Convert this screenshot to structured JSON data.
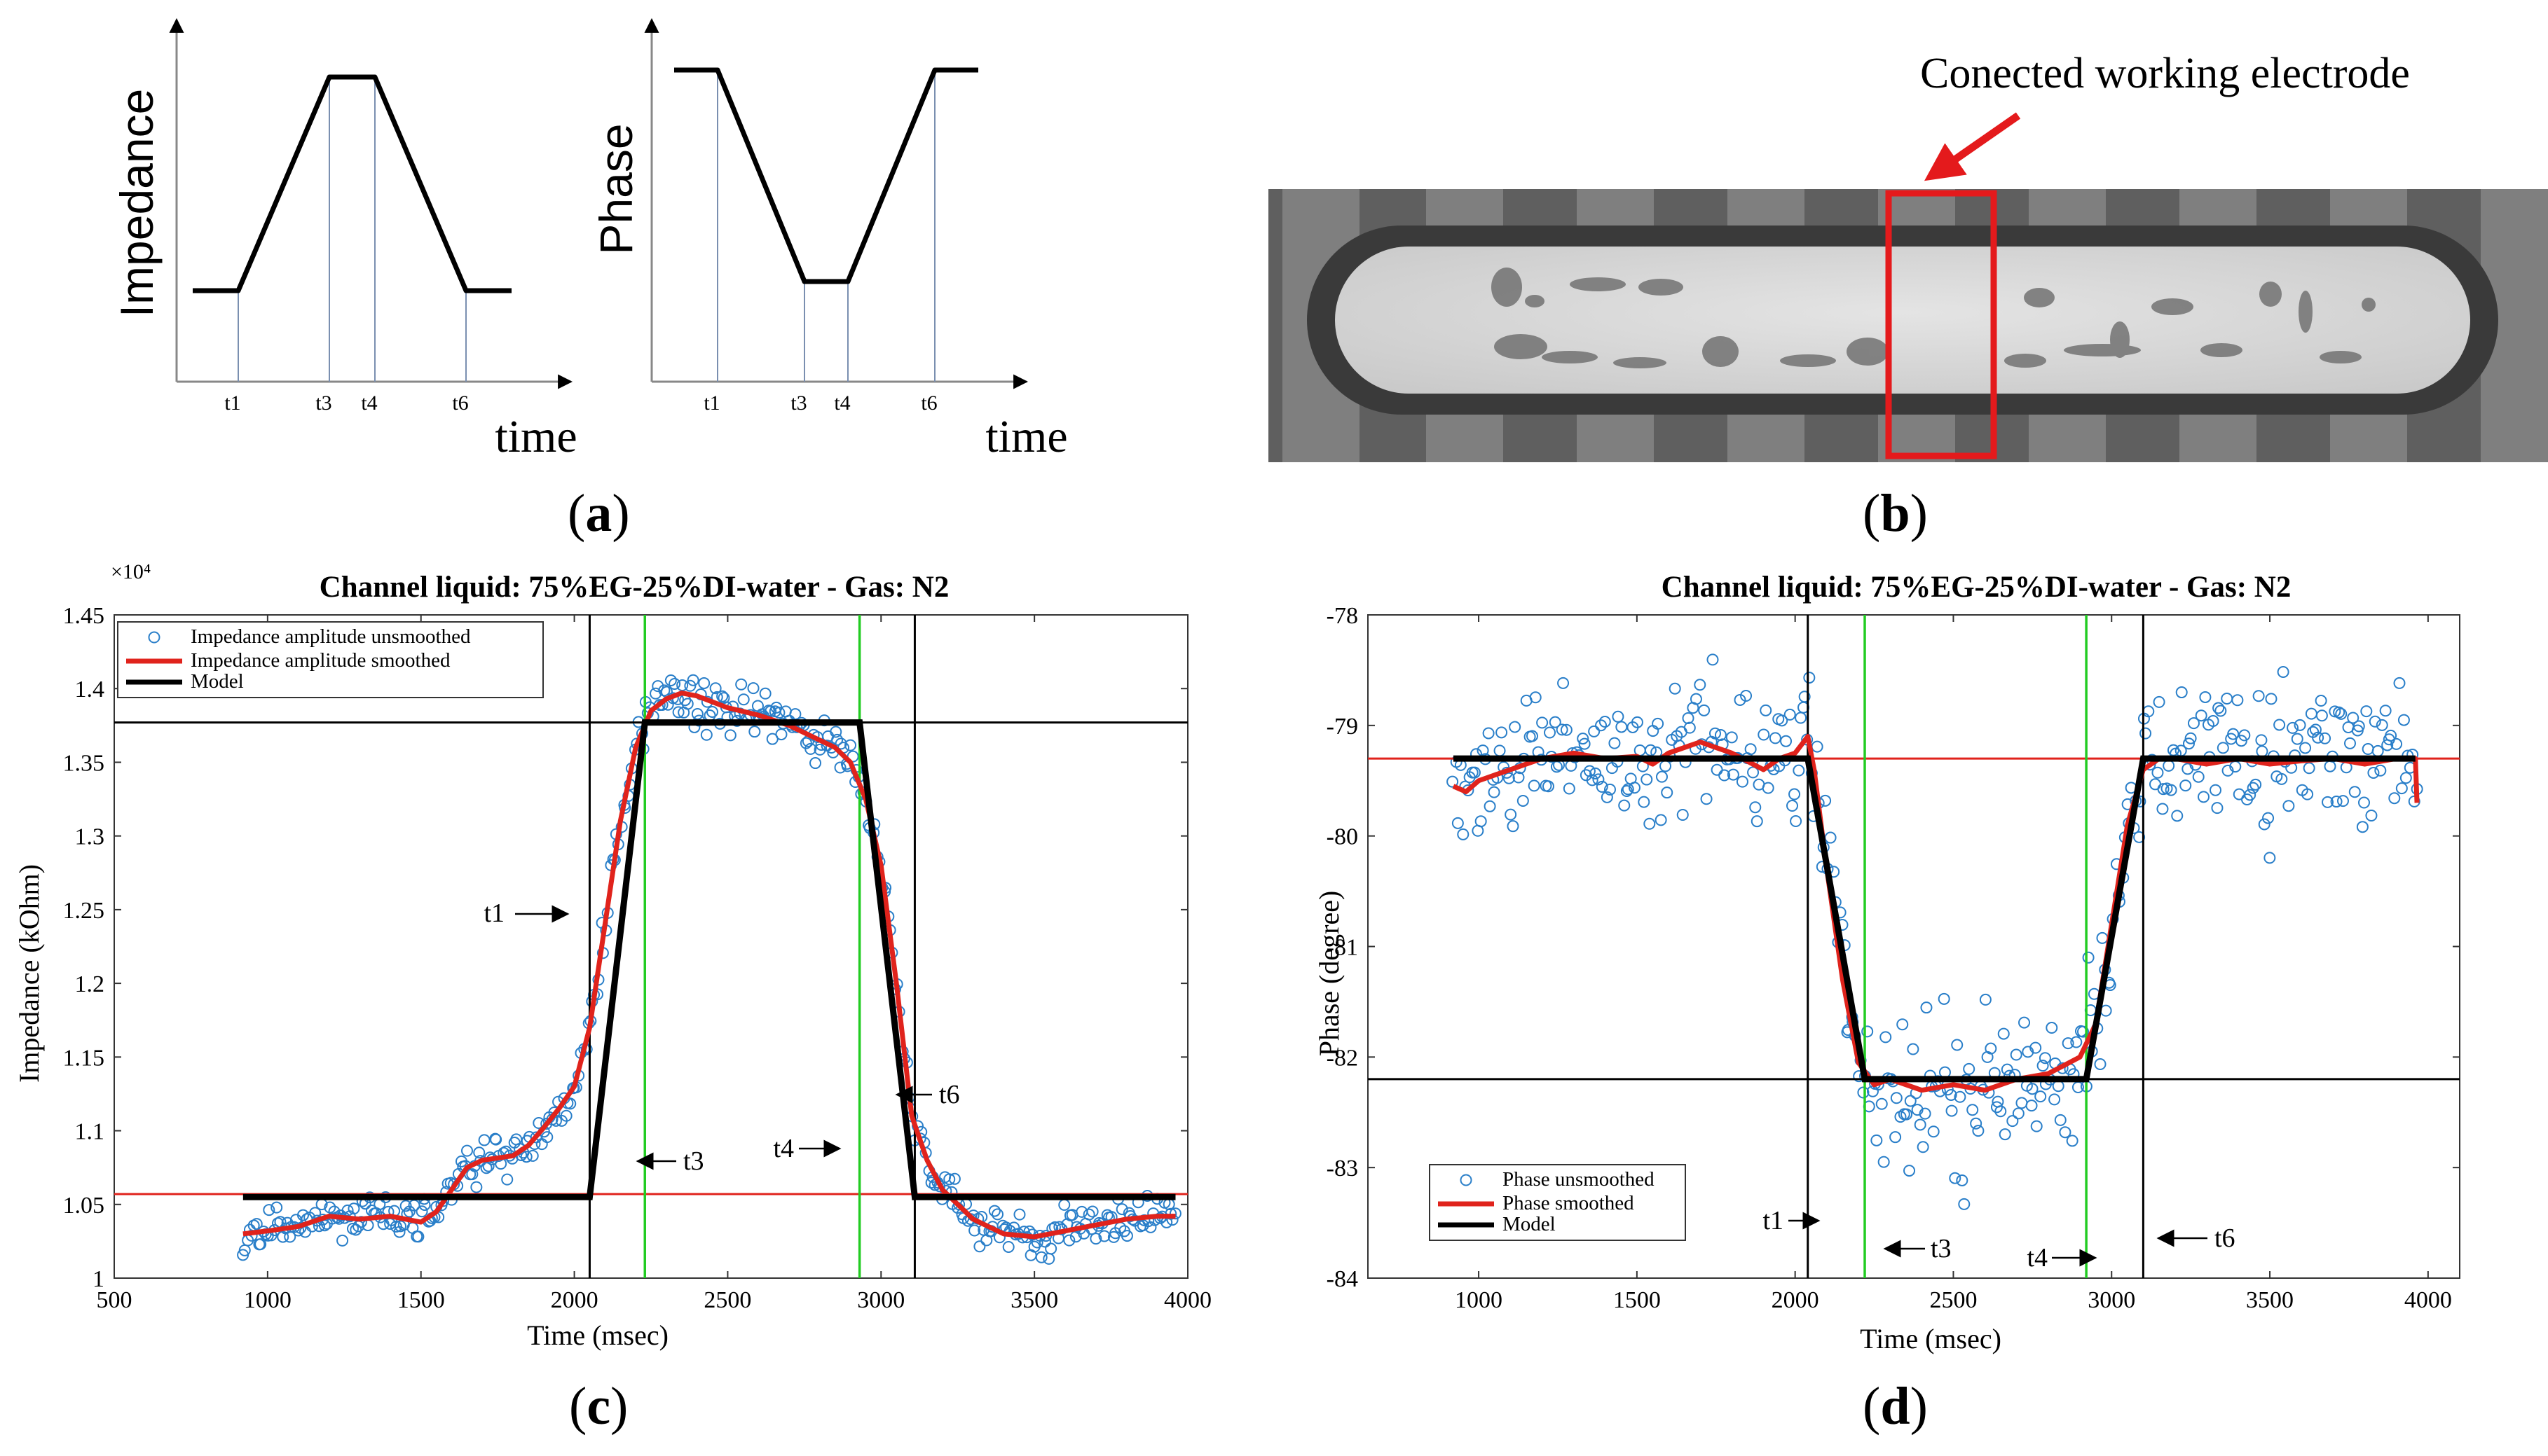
{
  "panels": {
    "a_label": "a",
    "b_label": "b",
    "c_label": "c",
    "d_label": "d"
  },
  "photo": {
    "annotation": "Conected working electrode",
    "highlight_color": "#e41a1c"
  },
  "colors": {
    "unsmoothed": "#2a7fc9",
    "smoothed": "#e0231c",
    "model": "#000000",
    "green_line": "#22cc22",
    "red_line": "#e0231c"
  },
  "chart_data": [
    {
      "id": "a1",
      "type": "line",
      "title": "",
      "xlabel": "time",
      "ylabel": "Impedance",
      "x_ticks": [
        "t1",
        "t3",
        "t4",
        "t6"
      ],
      "x": [
        0,
        1,
        3,
        4,
        6,
        7
      ],
      "values": [
        0,
        0,
        1,
        1,
        0,
        0
      ]
    },
    {
      "id": "a2",
      "type": "line",
      "title": "",
      "xlabel": "time",
      "ylabel": "Phase",
      "x_ticks": [
        "t1",
        "t3",
        "t4",
        "t6"
      ],
      "x": [
        0,
        1,
        3,
        4,
        6,
        7
      ],
      "values": [
        1,
        1,
        0,
        0,
        1,
        1
      ]
    },
    {
      "id": "c",
      "type": "scatter",
      "title": "Channel liquid: 75%EG-25%DI-water - Gas: N2",
      "xlabel": "Time (msec)",
      "ylabel": "Impedance (kOhm)",
      "y_multiplier": "×10⁴",
      "xlim": [
        500,
        4000
      ],
      "ylim": [
        1.0,
        1.45
      ],
      "x_ticks": [
        500,
        1000,
        1500,
        2000,
        2500,
        3000,
        3500,
        4000
      ],
      "y_ticks": [
        "1",
        "1.05",
        "1.1",
        "1.15",
        "1.2",
        "1.25",
        "1.3",
        "1.35",
        "1.4",
        "1.45"
      ],
      "legend": [
        "Impedance amplitude unsmoothed",
        "Impedance amplitude smoothed",
        "Model"
      ],
      "legend_position": "top-left",
      "model": {
        "x": [
          920,
          2050,
          2230,
          2930,
          3110,
          3960
        ],
        "y": [
          1.055,
          1.055,
          1.377,
          1.377,
          1.055,
          1.055
        ]
      },
      "smoothed": {
        "x": [
          920,
          1000,
          1100,
          1200,
          1300,
          1400,
          1500,
          1550,
          1600,
          1650,
          1700,
          1800,
          1850,
          1900,
          1950,
          2000,
          2050,
          2100,
          2150,
          2200,
          2250,
          2300,
          2350,
          2400,
          2500,
          2600,
          2700,
          2800,
          2850,
          2900,
          2950,
          3000,
          3050,
          3100,
          3150,
          3200,
          3300,
          3400,
          3500,
          3600,
          3700,
          3800,
          3900,
          3960
        ],
        "y": [
          1.03,
          1.032,
          1.035,
          1.042,
          1.04,
          1.042,
          1.038,
          1.045,
          1.06,
          1.075,
          1.08,
          1.083,
          1.09,
          1.102,
          1.115,
          1.13,
          1.17,
          1.24,
          1.31,
          1.36,
          1.385,
          1.393,
          1.397,
          1.395,
          1.387,
          1.382,
          1.375,
          1.365,
          1.36,
          1.35,
          1.325,
          1.28,
          1.2,
          1.11,
          1.08,
          1.06,
          1.04,
          1.03,
          1.028,
          1.032,
          1.036,
          1.04,
          1.042,
          1.042
        ]
      },
      "hlines": [
        1.377,
        1.057
      ],
      "vlines_black": [
        2050,
        3110
      ],
      "vlines_green": [
        2230,
        2930
      ],
      "annotations": [
        "t1",
        "t3",
        "t4",
        "t6"
      ],
      "noise": 0.008,
      "n_points": 420
    },
    {
      "id": "d",
      "type": "scatter",
      "title": "Channel liquid: 75%EG-25%DI-water - Gas: N2",
      "xlabel": "Time (msec)",
      "ylabel": "Phase (degree)",
      "xlim": [
        650,
        4100
      ],
      "ylim": [
        -84,
        -78
      ],
      "x_ticks": [
        1000,
        1500,
        2000,
        2500,
        3000,
        3500,
        4000
      ],
      "y_ticks": [
        "-78",
        "-79",
        "-80",
        "-81",
        "-82",
        "-83",
        "-84"
      ],
      "legend": [
        "Phase unsmoothed",
        "Phase smoothed",
        "Model"
      ],
      "legend_position": "bottom-left",
      "model": {
        "x": [
          920,
          2040,
          2220,
          2920,
          3100,
          3960
        ],
        "y": [
          -79.3,
          -79.3,
          -82.2,
          -82.2,
          -79.3,
          -79.3
        ]
      },
      "smoothed": {
        "x": [
          920,
          960,
          1000,
          1050,
          1100,
          1150,
          1200,
          1300,
          1400,
          1500,
          1550,
          1600,
          1700,
          1750,
          1800,
          1900,
          1950,
          2000,
          2040,
          2060,
          2100,
          2150,
          2200,
          2250,
          2300,
          2400,
          2500,
          2600,
          2700,
          2800,
          2900,
          2950,
          3000,
          3050,
          3100,
          3150,
          3200,
          3300,
          3400,
          3500,
          3600,
          3700,
          3800,
          3900,
          3960,
          3965
        ],
        "y": [
          -79.55,
          -79.6,
          -79.5,
          -79.45,
          -79.4,
          -79.35,
          -79.3,
          -79.25,
          -79.3,
          -79.28,
          -79.35,
          -79.25,
          -79.15,
          -79.2,
          -79.25,
          -79.4,
          -79.3,
          -79.25,
          -79.1,
          -79.4,
          -80.3,
          -81.3,
          -82.05,
          -82.25,
          -82.2,
          -82.3,
          -82.25,
          -82.3,
          -82.2,
          -82.15,
          -82.0,
          -81.7,
          -80.8,
          -79.9,
          -79.4,
          -79.3,
          -79.3,
          -79.35,
          -79.3,
          -79.35,
          -79.32,
          -79.3,
          -79.35,
          -79.3,
          -79.3,
          -79.7
        ]
      },
      "hlines": [
        -82.2,
        -79.3
      ],
      "vlines_black": [
        2040,
        3100
      ],
      "vlines_green": [
        2220,
        2920
      ],
      "annotations": [
        "t1",
        "t3",
        "t4",
        "t6"
      ],
      "noise": 0.32,
      "n_points": 420
    }
  ]
}
